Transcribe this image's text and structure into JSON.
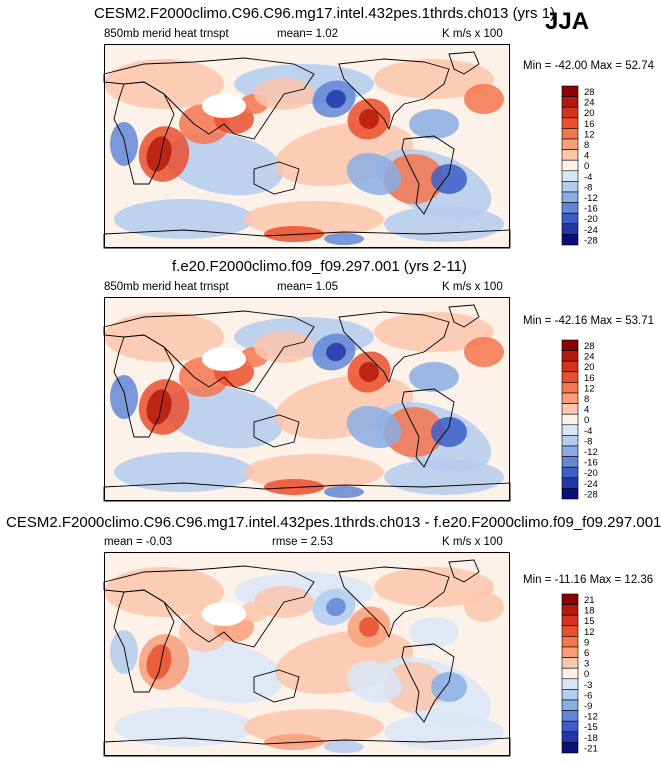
{
  "season": "JJA",
  "panels": [
    {
      "title": "CESM2.F2000climo.C96.C96.mg17.intel.432pes.1thrds.ch013 (yrs 1)",
      "left_label": "850mb merid heat trnspt",
      "center_label": "mean=   1.02",
      "right_label": "K m/s x 100",
      "minmax": "Min = -42.00 Max = 52.74",
      "colorbar_levels": [
        "28",
        "24",
        "20",
        "16",
        "12",
        "8",
        "4",
        "0",
        "-4",
        "-8",
        "-12",
        "-16",
        "-20",
        "-24",
        "-28"
      ]
    },
    {
      "title": "f.e20.F2000climo.f09_f09.297.001 (yrs 2-11)",
      "left_label": "850mb merid heat trnspt",
      "center_label": "mean=   1.05",
      "right_label": "K m/s x 100",
      "minmax": "Min = -42.16 Max = 53.71",
      "colorbar_levels": [
        "28",
        "24",
        "20",
        "16",
        "12",
        "8",
        "4",
        "0",
        "-4",
        "-8",
        "-12",
        "-16",
        "-20",
        "-24",
        "-28"
      ]
    },
    {
      "title": "CESM2.F2000climo.C96.C96.mg17.intel.432pes.1thrds.ch013 - f.e20.F2000climo.f09_f09.297.001",
      "left_label": "mean =  -0.03",
      "center_label": "rmse =   2.53",
      "right_label": "K m/s x 100",
      "minmax": "Min = -11.16 Max = 12.36",
      "colorbar_levels": [
        "21",
        "18",
        "15",
        "12",
        "9",
        "6",
        "3",
        "0",
        "-3",
        "-6",
        "-9",
        "-12",
        "-15",
        "-18",
        "-21"
      ]
    }
  ],
  "chart_data": [
    {
      "type": "heatmap",
      "title": "CESM2.F2000climo.C96.C96.mg17.intel.432pes.1thrds.ch013 (yrs 1)",
      "variable": "850mb merid heat trnspt",
      "units": "K m/s x 100",
      "mean": 1.02,
      "min": -42.0,
      "max": 52.74,
      "contour_levels": [
        -28,
        -24,
        -20,
        -16,
        -12,
        -8,
        -4,
        0,
        4,
        8,
        12,
        16,
        20,
        24,
        28
      ]
    },
    {
      "type": "heatmap",
      "title": "f.e20.F2000climo.f09_f09.297.001 (yrs 2-11)",
      "variable": "850mb merid heat trnspt",
      "units": "K m/s x 100",
      "mean": 1.05,
      "min": -42.16,
      "max": 53.71,
      "contour_levels": [
        -28,
        -24,
        -20,
        -16,
        -12,
        -8,
        -4,
        0,
        4,
        8,
        12,
        16,
        20,
        24,
        28
      ]
    },
    {
      "type": "heatmap",
      "title": "CESM2.F2000climo.C96.C96.mg17.intel.432pes.1thrds.ch013 - f.e20.F2000climo.f09_f09.297.001",
      "units": "K m/s x 100",
      "mean": -0.03,
      "rmse": 2.53,
      "min": -11.16,
      "max": 12.36,
      "contour_levels": [
        -21,
        -18,
        -15,
        -12,
        -9,
        -6,
        -3,
        0,
        3,
        6,
        9,
        12,
        15,
        18,
        21
      ]
    }
  ],
  "colors": {
    "colorbar": [
      "#8b0000",
      "#b41a0c",
      "#d7301f",
      "#ea4f2e",
      "#f4764e",
      "#f89f7a",
      "#fbc6ab",
      "#fdf2ea",
      "#d9e6f6",
      "#b3cdee",
      "#8aaee4",
      "#6187d6",
      "#3d5ec6",
      "#2237a8",
      "#0b0f7a"
    ]
  }
}
